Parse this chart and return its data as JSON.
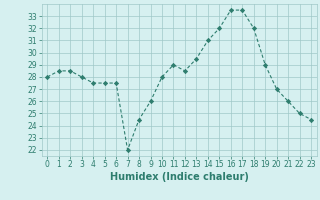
{
  "x": [
    0,
    1,
    2,
    3,
    4,
    5,
    6,
    7,
    8,
    9,
    10,
    11,
    12,
    13,
    14,
    15,
    16,
    17,
    18,
    19,
    20,
    21,
    22,
    23
  ],
  "y": [
    28,
    28.5,
    28.5,
    28,
    27.5,
    27.5,
    27.5,
    22,
    24.5,
    26,
    28,
    29,
    28.5,
    29.5,
    31,
    32,
    33.5,
    33.5,
    32,
    29,
    27,
    26,
    25,
    24.5
  ],
  "xlim": [
    -0.5,
    23.5
  ],
  "ylim": [
    21.5,
    34
  ],
  "yticks": [
    22,
    23,
    24,
    25,
    26,
    27,
    28,
    29,
    30,
    31,
    32,
    33
  ],
  "xticks": [
    0,
    1,
    2,
    3,
    4,
    5,
    6,
    7,
    8,
    9,
    10,
    11,
    12,
    13,
    14,
    15,
    16,
    17,
    18,
    19,
    20,
    21,
    22,
    23
  ],
  "xlabel": "Humidex (Indice chaleur)",
  "line_color": "#2e7d6e",
  "marker": "D",
  "marker_size": 2.2,
  "bg_color": "#d6f0f0",
  "grid_color": "#a0c8c8",
  "tick_fontsize": 5.5,
  "xlabel_fontsize": 7.0
}
